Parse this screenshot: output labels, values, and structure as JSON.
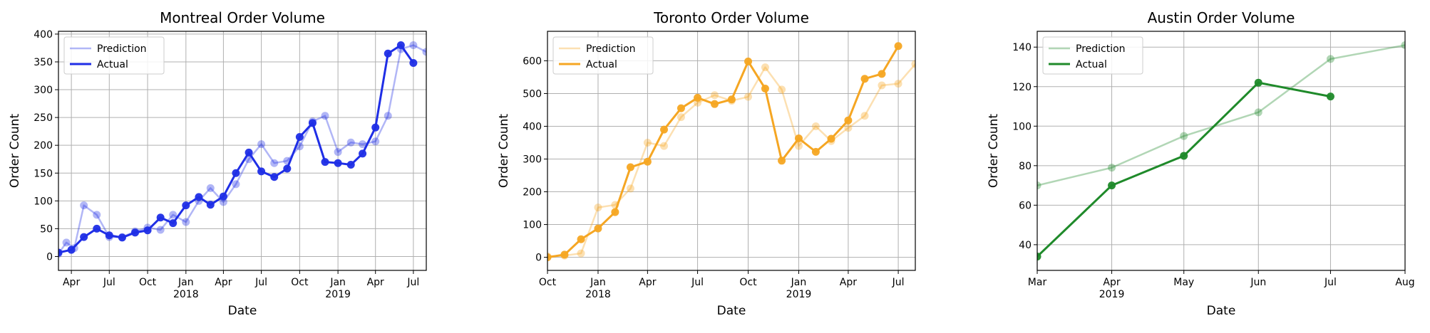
{
  "chart_data": [
    {
      "type": "line",
      "title": "Montreal Order Volume",
      "xlabel": "Date",
      "ylabel": "Order Count",
      "ylim": [
        -25,
        405
      ],
      "yticks": [
        0,
        50,
        100,
        150,
        200,
        250,
        300,
        350,
        400
      ],
      "xlim": [
        "2017-03-01",
        "2019-08-01"
      ],
      "xticks": [
        {
          "date": "2017-04-01",
          "label": "Apr"
        },
        {
          "date": "2017-07-01",
          "label": "Jul"
        },
        {
          "date": "2017-10-01",
          "label": "Oct"
        },
        {
          "date": "2018-01-01",
          "label": "Jan",
          "year": "2018"
        },
        {
          "date": "2018-04-01",
          "label": "Apr"
        },
        {
          "date": "2018-07-01",
          "label": "Jul"
        },
        {
          "date": "2018-10-01",
          "label": "Oct"
        },
        {
          "date": "2019-01-01",
          "label": "Jan",
          "year": "2019"
        },
        {
          "date": "2019-04-01",
          "label": "Apr"
        },
        {
          "date": "2019-07-01",
          "label": "Jul"
        }
      ],
      "grid": true,
      "legend_position": "top-left",
      "color": "#1f2ee6",
      "series": [
        {
          "name": "Prediction",
          "style": "light",
          "points": [
            {
              "x": "2017-03-01",
              "y": 5
            },
            {
              "x": "2017-03-20",
              "y": 25
            },
            {
              "x": "2017-04-08",
              "y": 15
            },
            {
              "x": "2017-05-01",
              "y": 92
            },
            {
              "x": "2017-06-01",
              "y": 75
            },
            {
              "x": "2017-07-01",
              "y": 35
            },
            {
              "x": "2017-08-01",
              "y": 35
            },
            {
              "x": "2017-09-01",
              "y": 45
            },
            {
              "x": "2017-10-01",
              "y": 52
            },
            {
              "x": "2017-11-01",
              "y": 48
            },
            {
              "x": "2017-12-01",
              "y": 75
            },
            {
              "x": "2018-01-01",
              "y": 62
            },
            {
              "x": "2018-02-01",
              "y": 100
            },
            {
              "x": "2018-03-01",
              "y": 123
            },
            {
              "x": "2018-04-01",
              "y": 98
            },
            {
              "x": "2018-05-01",
              "y": 130
            },
            {
              "x": "2018-06-01",
              "y": 175
            },
            {
              "x": "2018-07-01",
              "y": 202
            },
            {
              "x": "2018-08-01",
              "y": 168
            },
            {
              "x": "2018-09-01",
              "y": 172
            },
            {
              "x": "2018-10-01",
              "y": 198
            },
            {
              "x": "2018-11-01",
              "y": 243
            },
            {
              "x": "2018-12-01",
              "y": 253
            },
            {
              "x": "2019-01-01",
              "y": 188
            },
            {
              "x": "2019-02-01",
              "y": 205
            },
            {
              "x": "2019-03-01",
              "y": 202
            },
            {
              "x": "2019-04-01",
              "y": 207
            },
            {
              "x": "2019-05-01",
              "y": 253
            },
            {
              "x": "2019-06-01",
              "y": 373
            },
            {
              "x": "2019-07-01",
              "y": 380
            },
            {
              "x": "2019-08-01",
              "y": 368
            }
          ]
        },
        {
          "name": "Actual",
          "style": "solid",
          "points": [
            {
              "x": "2017-03-01",
              "y": 7
            },
            {
              "x": "2017-04-01",
              "y": 12
            },
            {
              "x": "2017-05-01",
              "y": 35
            },
            {
              "x": "2017-06-01",
              "y": 50
            },
            {
              "x": "2017-07-01",
              "y": 38
            },
            {
              "x": "2017-08-01",
              "y": 34
            },
            {
              "x": "2017-09-01",
              "y": 43
            },
            {
              "x": "2017-10-01",
              "y": 47
            },
            {
              "x": "2017-11-01",
              "y": 70
            },
            {
              "x": "2017-12-01",
              "y": 60
            },
            {
              "x": "2018-01-01",
              "y": 92
            },
            {
              "x": "2018-02-01",
              "y": 107
            },
            {
              "x": "2018-03-01",
              "y": 93
            },
            {
              "x": "2018-04-01",
              "y": 108
            },
            {
              "x": "2018-05-01",
              "y": 150
            },
            {
              "x": "2018-06-01",
              "y": 187
            },
            {
              "x": "2018-07-01",
              "y": 153
            },
            {
              "x": "2018-08-01",
              "y": 143
            },
            {
              "x": "2018-09-01",
              "y": 158
            },
            {
              "x": "2018-10-01",
              "y": 215
            },
            {
              "x": "2018-11-01",
              "y": 240
            },
            {
              "x": "2018-12-01",
              "y": 170
            },
            {
              "x": "2019-01-01",
              "y": 168
            },
            {
              "x": "2019-02-01",
              "y": 165
            },
            {
              "x": "2019-03-01",
              "y": 185
            },
            {
              "x": "2019-04-01",
              "y": 232
            },
            {
              "x": "2019-05-01",
              "y": 365
            },
            {
              "x": "2019-06-01",
              "y": 380
            },
            {
              "x": "2019-07-01",
              "y": 348
            }
          ]
        }
      ]
    },
    {
      "type": "line",
      "title": "Toronto Order Volume",
      "xlabel": "Date",
      "ylabel": "Order Count",
      "ylim": [
        -40,
        690
      ],
      "yticks": [
        0,
        100,
        200,
        300,
        400,
        500,
        600
      ],
      "xlim": [
        "2017-10-01",
        "2019-08-01"
      ],
      "xticks": [
        {
          "date": "2017-10-01",
          "label": "Oct"
        },
        {
          "date": "2018-01-01",
          "label": "Jan",
          "year": "2018"
        },
        {
          "date": "2018-04-01",
          "label": "Apr"
        },
        {
          "date": "2018-07-01",
          "label": "Jul"
        },
        {
          "date": "2018-10-01",
          "label": "Oct"
        },
        {
          "date": "2019-01-01",
          "label": "Jan",
          "year": "2019"
        },
        {
          "date": "2019-04-01",
          "label": "Apr"
        },
        {
          "date": "2019-07-01",
          "label": "Jul"
        }
      ],
      "grid": true,
      "legend_position": "top-left",
      "color": "#f5a623",
      "series": [
        {
          "name": "Prediction",
          "style": "light",
          "points": [
            {
              "x": "2017-10-01",
              "y": 3
            },
            {
              "x": "2017-11-01",
              "y": 5
            },
            {
              "x": "2017-12-01",
              "y": 12
            },
            {
              "x": "2018-01-01",
              "y": 152
            },
            {
              "x": "2018-02-01",
              "y": 160
            },
            {
              "x": "2018-03-01",
              "y": 210
            },
            {
              "x": "2018-04-01",
              "y": 350
            },
            {
              "x": "2018-05-01",
              "y": 340
            },
            {
              "x": "2018-06-01",
              "y": 428
            },
            {
              "x": "2018-07-01",
              "y": 472
            },
            {
              "x": "2018-08-01",
              "y": 495
            },
            {
              "x": "2018-09-01",
              "y": 478
            },
            {
              "x": "2018-10-01",
              "y": 490
            },
            {
              "x": "2018-11-01",
              "y": 580
            },
            {
              "x": "2018-12-01",
              "y": 512
            },
            {
              "x": "2019-01-01",
              "y": 340
            },
            {
              "x": "2019-02-01",
              "y": 400
            },
            {
              "x": "2019-03-01",
              "y": 355
            },
            {
              "x": "2019-04-01",
              "y": 395
            },
            {
              "x": "2019-05-01",
              "y": 432
            },
            {
              "x": "2019-06-01",
              "y": 525
            },
            {
              "x": "2019-07-01",
              "y": 530
            },
            {
              "x": "2019-08-01",
              "y": 590
            }
          ]
        },
        {
          "name": "Actual",
          "style": "solid",
          "points": [
            {
              "x": "2017-10-01",
              "y": 0
            },
            {
              "x": "2017-11-01",
              "y": 8
            },
            {
              "x": "2017-12-01",
              "y": 55
            },
            {
              "x": "2018-01-01",
              "y": 88
            },
            {
              "x": "2018-02-01",
              "y": 138
            },
            {
              "x": "2018-03-01",
              "y": 275
            },
            {
              "x": "2018-04-01",
              "y": 292
            },
            {
              "x": "2018-05-01",
              "y": 390
            },
            {
              "x": "2018-06-01",
              "y": 455
            },
            {
              "x": "2018-07-01",
              "y": 487
            },
            {
              "x": "2018-08-01",
              "y": 468
            },
            {
              "x": "2018-09-01",
              "y": 482
            },
            {
              "x": "2018-10-01",
              "y": 598
            },
            {
              "x": "2018-11-01",
              "y": 515
            },
            {
              "x": "2018-12-01",
              "y": 295
            },
            {
              "x": "2019-01-01",
              "y": 363
            },
            {
              "x": "2019-02-01",
              "y": 322
            },
            {
              "x": "2019-03-01",
              "y": 362
            },
            {
              "x": "2019-04-01",
              "y": 418
            },
            {
              "x": "2019-05-01",
              "y": 545
            },
            {
              "x": "2019-06-01",
              "y": 560
            },
            {
              "x": "2019-07-01",
              "y": 645
            }
          ]
        }
      ]
    },
    {
      "type": "line",
      "title": "Austin Order Volume",
      "xlabel": "Date",
      "ylabel": "Order Count",
      "ylim": [
        27,
        148
      ],
      "yticks": [
        40,
        60,
        80,
        100,
        120,
        140
      ],
      "xlim": [
        "2019-03-01",
        "2019-08-01"
      ],
      "xticks": [
        {
          "date": "2019-03-01",
          "label": "Mar"
        },
        {
          "date": "2019-04-01",
          "label": "Apr",
          "year": "2019"
        },
        {
          "date": "2019-05-01",
          "label": "May"
        },
        {
          "date": "2019-06-01",
          "label": "Jun"
        },
        {
          "date": "2019-07-01",
          "label": "Jul"
        },
        {
          "date": "2019-08-01",
          "label": "Aug"
        }
      ],
      "grid": true,
      "legend_position": "top-left",
      "color": "#1f8a2a",
      "series": [
        {
          "name": "Prediction",
          "style": "light",
          "points": [
            {
              "x": "2019-03-01",
              "y": 70
            },
            {
              "x": "2019-04-01",
              "y": 79
            },
            {
              "x": "2019-05-01",
              "y": 95
            },
            {
              "x": "2019-06-01",
              "y": 107
            },
            {
              "x": "2019-07-01",
              "y": 134
            },
            {
              "x": "2019-08-01",
              "y": 141
            }
          ]
        },
        {
          "name": "Actual",
          "style": "solid",
          "points": [
            {
              "x": "2019-03-01",
              "y": 34
            },
            {
              "x": "2019-04-01",
              "y": 70
            },
            {
              "x": "2019-05-01",
              "y": 85
            },
            {
              "x": "2019-06-01",
              "y": 122
            },
            {
              "x": "2019-07-01",
              "y": 115
            }
          ]
        }
      ]
    }
  ]
}
